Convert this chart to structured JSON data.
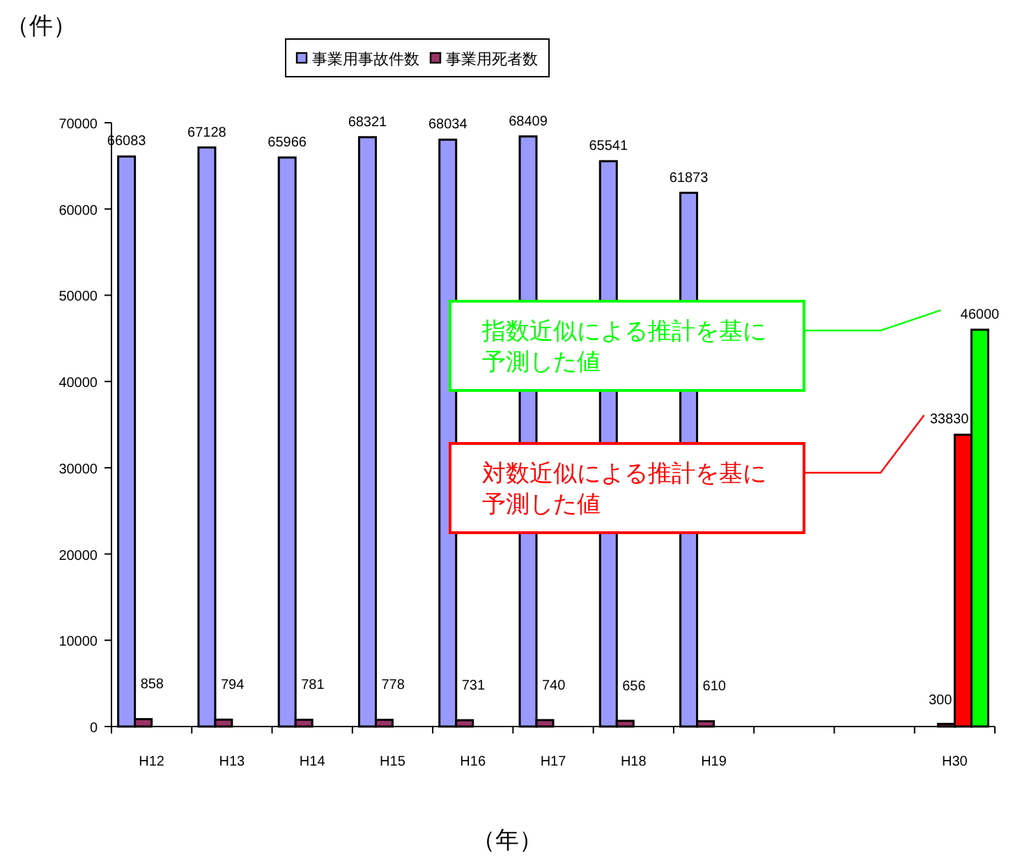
{
  "chart_data": {
    "type": "bar",
    "ylabel": "（件）",
    "xlabel": "（年）",
    "categories": [
      "H12",
      "H13",
      "H14",
      "H15",
      "H16",
      "H17",
      "H18",
      "H19",
      null,
      null,
      "H30"
    ],
    "series": [
      {
        "name": "事業用事故件数",
        "color": "#9999ff",
        "values": [
          66083,
          67128,
          65966,
          68321,
          68034,
          68409,
          65541,
          61873,
          null,
          null,
          null
        ]
      },
      {
        "name": "事業用死者数",
        "color": "#993366",
        "values": [
          858,
          794,
          781,
          778,
          731,
          740,
          656,
          610,
          null,
          null,
          300
        ]
      },
      {
        "color": "#ff0000",
        "values": [
          null,
          null,
          null,
          null,
          null,
          null,
          null,
          null,
          null,
          null,
          33830
        ]
      },
      {
        "color": "#00ff00",
        "values": [
          null,
          null,
          null,
          null,
          null,
          null,
          null,
          null,
          null,
          null,
          46000
        ]
      }
    ],
    "ylim": [
      0,
      70000
    ],
    "yticks": [
      0,
      10000,
      20000,
      30000,
      40000,
      50000,
      60000,
      70000
    ],
    "data_labels": true,
    "legend": "top",
    "grid": false,
    "annotations": [
      "指数近似による推計を基に予測した値",
      "対数近似による推計を基に予測した値"
    ]
  }
}
